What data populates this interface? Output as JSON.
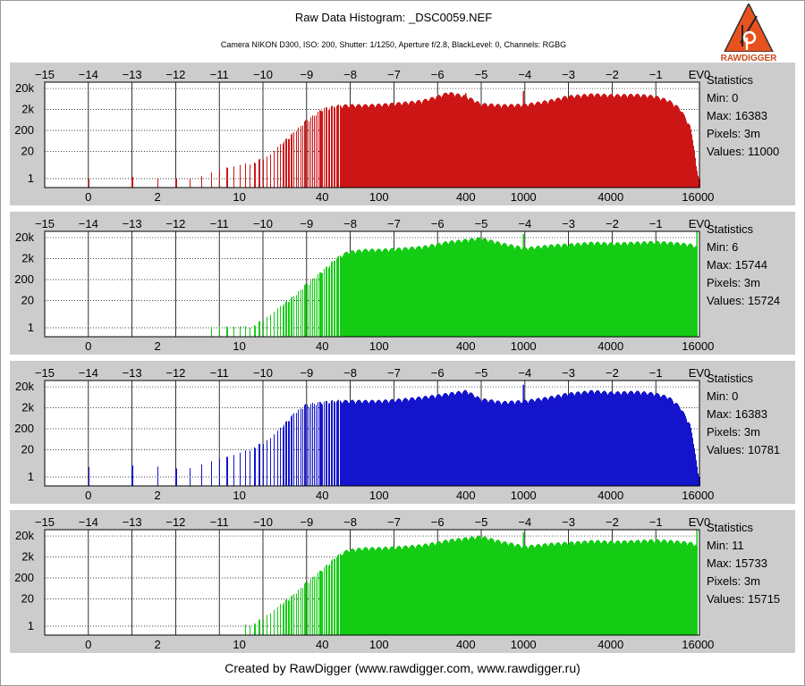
{
  "header": {
    "title": "Raw Data Histogram: _DSC0059.NEF",
    "subtitle": "Camera NIKON D300, ISO: 200, Shutter: 1/1250, Aperture f/2.8, BlackLevel: 0, Channels: RGBG"
  },
  "logo": {
    "text": "RAWDIGGER",
    "icon": "rawdigger-logo-icon"
  },
  "footer": {
    "text": "Created by RawDigger (www.rawdigger.com, www.rawdigger.ru)"
  },
  "colors": {
    "red": "#cc1616",
    "green": "#14cc14",
    "blue": "#1414cc",
    "panel_bg": "#cccccc"
  },
  "chart_data": [
    {
      "type": "bar",
      "channel": "R",
      "color": "#cc1616",
      "x_scale": "log2",
      "y_scale": "log10",
      "x_range": [
        0,
        16383
      ],
      "y_range": [
        1,
        40000
      ],
      "top_axis_ticks": [
        "−15",
        "−14",
        "−13",
        "−12",
        "−11",
        "−10",
        "−9",
        "−8",
        "−7",
        "−6",
        "−5",
        "−4",
        "−3",
        "−2",
        "−1",
        "EV0"
      ],
      "bottom_axis_ticks": [
        "0",
        "2",
        "10",
        "40",
        "100",
        "400",
        "1000",
        "4000",
        "16000"
      ],
      "y_ticks": [
        "20k",
        "2k",
        "200",
        "20",
        "1"
      ],
      "profile": {
        "x": [
          0,
          1,
          2,
          4,
          8,
          12,
          16,
          20,
          25,
          30,
          40,
          50,
          60,
          80,
          100,
          200,
          300,
          400,
          500,
          700,
          1000,
          1500,
          2000,
          3000,
          4000,
          6000,
          8000,
          10000,
          12000,
          14000,
          15000,
          15500,
          16000,
          16383
        ],
        "y": [
          1,
          1,
          1,
          1,
          3,
          5,
          10,
          40,
          150,
          500,
          2000,
          2800,
          3000,
          3000,
          3200,
          5000,
          12000,
          8000,
          3500,
          3000,
          3200,
          5000,
          8000,
          10000,
          9000,
          9500,
          8000,
          5000,
          2000,
          300,
          30,
          3,
          1,
          1
        ]
      },
      "spikes": [
        {
          "x": 400,
          "y": 12000
        },
        {
          "x": 1000,
          "y": 15000
        }
      ],
      "stats": {
        "heading": "Statistics",
        "min": "Min: 0",
        "max": "Max: 16383",
        "pixels": "Pixels: 3m",
        "values": "Values: 11000"
      }
    },
    {
      "type": "bar",
      "channel": "G",
      "color": "#14cc14",
      "x_scale": "log2",
      "y_scale": "log10",
      "x_range": [
        0,
        16383
      ],
      "y_range": [
        1,
        40000
      ],
      "top_axis_ticks": [
        "−15",
        "−14",
        "−13",
        "−12",
        "−11",
        "−10",
        "−9",
        "−8",
        "−7",
        "−6",
        "−5",
        "−4",
        "−3",
        "−2",
        "−1",
        "EV0"
      ],
      "bottom_axis_ticks": [
        "0",
        "2",
        "10",
        "40",
        "100",
        "400",
        "1000",
        "4000",
        "16000"
      ],
      "y_ticks": [
        "20k",
        "2k",
        "200",
        "20",
        "1"
      ],
      "profile": {
        "x": [
          6,
          8,
          12,
          16,
          20,
          25,
          30,
          40,
          50,
          60,
          80,
          100,
          200,
          300,
          400,
          500,
          700,
          1000,
          1500,
          2000,
          3000,
          4000,
          6000,
          8000,
          10000,
          12000,
          14000,
          15000,
          15744
        ],
        "y": [
          1,
          1,
          1,
          3,
          10,
          30,
          100,
          500,
          2000,
          4000,
          5000,
          5000,
          7000,
          12000,
          15000,
          18000,
          10000,
          6000,
          8000,
          9000,
          11000,
          10000,
          11000,
          12000,
          11000,
          10000,
          9000,
          8000,
          6000
        ]
      },
      "spikes": [
        {
          "x": 1000,
          "y": 30000
        },
        {
          "x": 15744,
          "y": 40000
        }
      ],
      "stats": {
        "heading": "Statistics",
        "min": "Min: 6",
        "max": "Max: 15744",
        "pixels": "Pixels: 3m",
        "values": "Values: 15724"
      }
    },
    {
      "type": "bar",
      "channel": "B",
      "color": "#1414cc",
      "x_scale": "log2",
      "y_scale": "log10",
      "x_range": [
        0,
        16383
      ],
      "y_range": [
        1,
        40000
      ],
      "top_axis_ticks": [
        "−15",
        "−14",
        "−13",
        "−12",
        "−11",
        "−10",
        "−9",
        "−8",
        "−7",
        "−6",
        "−5",
        "−4",
        "−3",
        "−2",
        "−1",
        "EV0"
      ],
      "bottom_axis_ticks": [
        "0",
        "2",
        "10",
        "40",
        "100",
        "400",
        "1000",
        "4000",
        "16000"
      ],
      "y_ticks": [
        "20k",
        "2k",
        "200",
        "20",
        "1"
      ],
      "profile": {
        "x": [
          0,
          1,
          2,
          4,
          6,
          8,
          10,
          12,
          16,
          20,
          25,
          30,
          40,
          50,
          60,
          80,
          100,
          200,
          300,
          400,
          500,
          700,
          1000,
          1500,
          2000,
          3000,
          4000,
          6000,
          8000,
          10000,
          12000,
          14000,
          15000,
          15500,
          16000,
          16383
        ],
        "y": [
          3,
          3,
          3,
          3,
          5,
          8,
          12,
          20,
          50,
          200,
          1000,
          2500,
          3500,
          4000,
          4000,
          4000,
          4000,
          6000,
          9000,
          12000,
          5000,
          3500,
          4000,
          6000,
          9000,
          12000,
          10000,
          11000,
          9000,
          6000,
          2000,
          300,
          30,
          5,
          1,
          1
        ]
      },
      "spikes": [
        {
          "x": 1000,
          "y": 25000
        }
      ],
      "stats": {
        "heading": "Statistics",
        "min": "Min: 0",
        "max": "Max: 16383",
        "pixels": "Pixels: 3m",
        "values": "Values: 10781"
      }
    },
    {
      "type": "bar",
      "channel": "G2",
      "color": "#14cc14",
      "x_scale": "log2",
      "y_scale": "log10",
      "x_range": [
        0,
        16383
      ],
      "y_range": [
        1,
        40000
      ],
      "top_axis_ticks": [
        "−15",
        "−14",
        "−13",
        "−12",
        "−11",
        "−10",
        "−9",
        "−8",
        "−7",
        "−6",
        "−5",
        "−4",
        "−3",
        "−2",
        "−1",
        "EV0"
      ],
      "bottom_axis_ticks": [
        "0",
        "2",
        "10",
        "40",
        "100",
        "400",
        "1000",
        "4000",
        "16000"
      ],
      "y_ticks": [
        "20k",
        "2k",
        "200",
        "20",
        "1"
      ],
      "profile": {
        "x": [
          11,
          12,
          16,
          20,
          25,
          30,
          40,
          50,
          60,
          80,
          100,
          200,
          300,
          400,
          500,
          700,
          1000,
          1500,
          2000,
          3000,
          4000,
          6000,
          8000,
          10000,
          12000,
          14000,
          15000,
          15733
        ],
        "y": [
          1,
          1,
          3,
          10,
          30,
          100,
          500,
          2000,
          4000,
          5000,
          5000,
          7000,
          12000,
          15000,
          18000,
          10000,
          6000,
          8000,
          9000,
          11000,
          10000,
          11000,
          12000,
          11000,
          10000,
          9000,
          8000,
          6000
        ]
      },
      "spikes": [
        {
          "x": 1000,
          "y": 30000
        },
        {
          "x": 15733,
          "y": 40000
        }
      ],
      "stats": {
        "heading": "Statistics",
        "min": "Min: 11",
        "max": "Max: 15733",
        "pixels": "Pixels: 3m",
        "values": "Values: 15715"
      }
    }
  ]
}
